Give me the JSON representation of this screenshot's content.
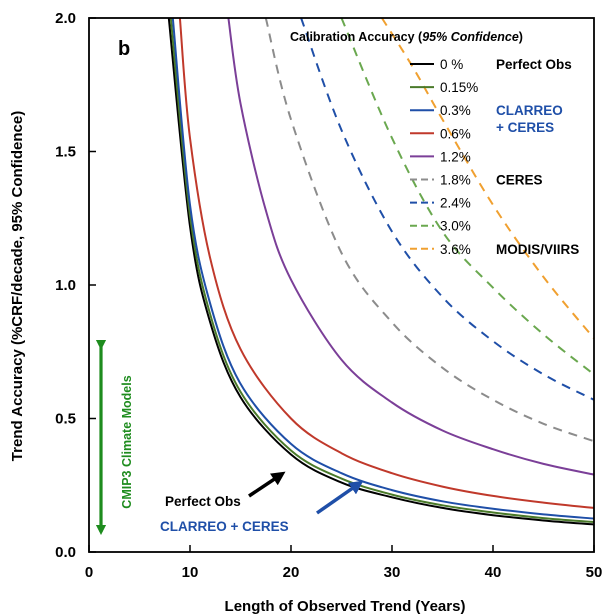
{
  "chart_data": {
    "type": "line",
    "panel_label": "b",
    "xlabel": "Length of Observed Trend (Years)",
    "ylabel": "Trend Accuracy (%CRF/decade, 95% Confidence)",
    "xlim": [
      0,
      50
    ],
    "ylim": [
      0,
      2.0
    ],
    "x_ticks": [
      "0",
      "10",
      "20",
      "30",
      "40",
      "50"
    ],
    "y_ticks": [
      "0.0",
      "0.5",
      "1.0",
      "1.5",
      "2.0"
    ],
    "grid": false,
    "legend_title": {
      "text": "Calibration Accuracy (",
      "italic": "95% Confidence",
      "close": ")"
    },
    "legend_placement": "top-right",
    "series": [
      {
        "name": "0 %",
        "calibration_pct": 0.0,
        "color": "#000000",
        "dash": "solid",
        "group_label": "Perfect Obs",
        "group_color": "#000000",
        "points": [
          [
            7.9,
            2.0
          ],
          [
            10,
            1.22
          ],
          [
            12,
            0.86
          ],
          [
            15,
            0.58
          ],
          [
            20,
            0.365
          ],
          [
            25,
            0.26
          ],
          [
            30,
            0.205
          ],
          [
            35,
            0.165
          ],
          [
            40,
            0.138
          ],
          [
            45,
            0.118
          ],
          [
            50,
            0.103
          ]
        ]
      },
      {
        "name": "0.15%",
        "calibration_pct": 0.15,
        "color": "#4a7a2a",
        "dash": "solid",
        "points": [
          [
            8.1,
            2.0
          ],
          [
            10,
            1.26
          ],
          [
            12,
            0.89
          ],
          [
            15,
            0.6
          ],
          [
            20,
            0.38
          ],
          [
            25,
            0.275
          ],
          [
            30,
            0.215
          ],
          [
            35,
            0.175
          ],
          [
            40,
            0.148
          ],
          [
            45,
            0.127
          ],
          [
            50,
            0.112
          ]
        ]
      },
      {
        "name": "0.3%",
        "calibration_pct": 0.3,
        "color": "#1f4fa8",
        "dash": "solid",
        "group_label": "CLARREO\n+ CERES",
        "group_color": "#1f4fa8",
        "points": [
          [
            8.3,
            2.0
          ],
          [
            10,
            1.3
          ],
          [
            12,
            0.93
          ],
          [
            15,
            0.63
          ],
          [
            20,
            0.405
          ],
          [
            25,
            0.295
          ],
          [
            30,
            0.232
          ],
          [
            35,
            0.19
          ],
          [
            40,
            0.162
          ],
          [
            45,
            0.141
          ],
          [
            50,
            0.125
          ]
        ]
      },
      {
        "name": "0.6%",
        "calibration_pct": 0.6,
        "color": "#c0392b",
        "dash": "solid",
        "points": [
          [
            9.0,
            2.0
          ],
          [
            10,
            1.55
          ],
          [
            12,
            1.1
          ],
          [
            15,
            0.76
          ],
          [
            20,
            0.5
          ],
          [
            25,
            0.37
          ],
          [
            30,
            0.295
          ],
          [
            35,
            0.245
          ],
          [
            40,
            0.21
          ],
          [
            45,
            0.185
          ],
          [
            50,
            0.165
          ]
        ]
      },
      {
        "name": "1.2%",
        "calibration_pct": 1.2,
        "color": "#7b3f98",
        "dash": "solid",
        "points": [
          [
            13.8,
            2.0
          ],
          [
            15,
            1.68
          ],
          [
            17.5,
            1.28
          ],
          [
            20,
            1.02
          ],
          [
            25,
            0.72
          ],
          [
            30,
            0.56
          ],
          [
            35,
            0.455
          ],
          [
            40,
            0.385
          ],
          [
            45,
            0.33
          ],
          [
            50,
            0.29
          ]
        ]
      },
      {
        "name": "1.8%",
        "calibration_pct": 1.8,
        "color": "#8c8c8c",
        "dash": "dashed",
        "group_label": "CERES",
        "group_color": "#000000",
        "points": [
          [
            17.5,
            2.0
          ],
          [
            20,
            1.62
          ],
          [
            25,
            1.12
          ],
          [
            30,
            0.86
          ],
          [
            35,
            0.69
          ],
          [
            40,
            0.57
          ],
          [
            45,
            0.48
          ],
          [
            50,
            0.415
          ]
        ]
      },
      {
        "name": "2.4%",
        "calibration_pct": 2.4,
        "color": "#1f4fa8",
        "dash": "dashed",
        "points": [
          [
            21.0,
            2.0
          ],
          [
            25,
            1.58
          ],
          [
            30,
            1.2
          ],
          [
            35,
            0.955
          ],
          [
            40,
            0.79
          ],
          [
            45,
            0.665
          ],
          [
            50,
            0.57
          ]
        ]
      },
      {
        "name": "3.0%",
        "calibration_pct": 3.0,
        "color": "#6aa84f",
        "dash": "dashed",
        "points": [
          [
            25.0,
            2.0
          ],
          [
            30,
            1.55
          ],
          [
            35,
            1.2
          ],
          [
            40,
            0.99
          ],
          [
            45,
            0.815
          ],
          [
            50,
            0.665
          ]
        ]
      },
      {
        "name": "3.6%",
        "calibration_pct": 3.6,
        "color": "#f0a030",
        "dash": "dashed",
        "group_label": "MODIS/VIIRS",
        "group_color": "#000000",
        "points": [
          [
            29.0,
            2.0
          ],
          [
            32,
            1.82
          ],
          [
            35,
            1.62
          ],
          [
            40,
            1.3
          ],
          [
            45,
            1.03
          ],
          [
            50,
            0.8
          ]
        ]
      }
    ],
    "annotations": {
      "perfect_obs": {
        "text": "Perfect Obs",
        "color": "#000000",
        "arrow_to": [
          24,
          0.36
        ]
      },
      "clarreo_ceres": {
        "text": "CLARREO + CERES",
        "color": "#1f4fa8",
        "arrow_to": [
          28,
          0.31
        ]
      },
      "cmip3": {
        "text": "CMIP3 Climate Models",
        "color": "#1e8c1e",
        "range": [
          0.02,
          0.82
        ],
        "x": 1.3
      }
    }
  }
}
